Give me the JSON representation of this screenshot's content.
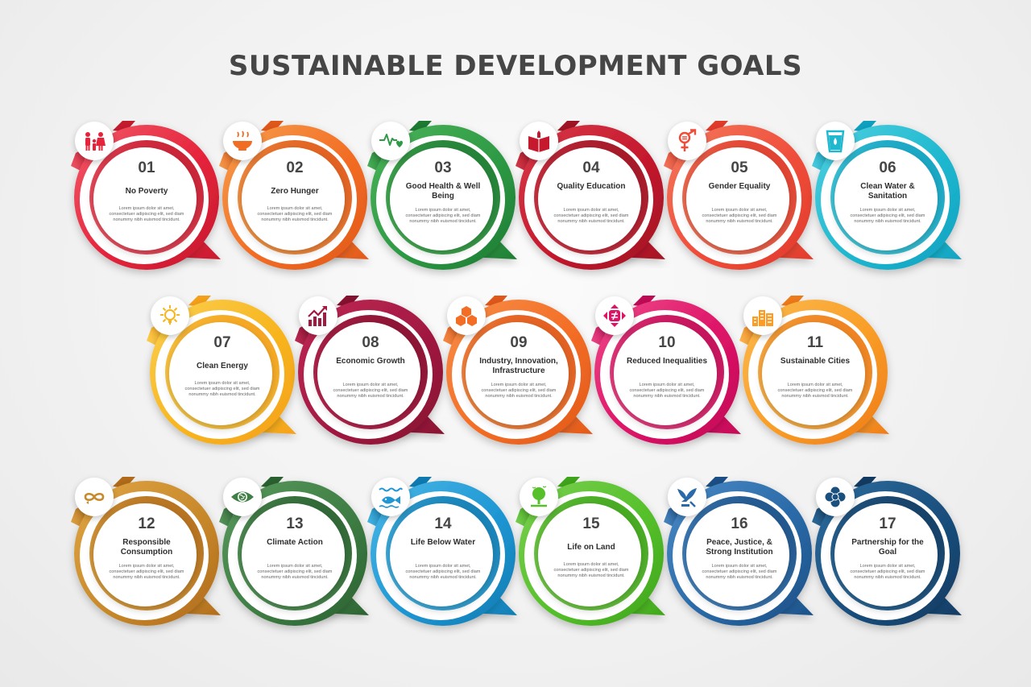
{
  "title": "SUSTAINABLE DEVELOPMENT GOALS",
  "description_text": "Lorem ipsum dolor sit amet, consectetuer adipiscing elit, sed diam nonummy nibh euismod tincidunt.",
  "goals": [
    {
      "number": "01",
      "name": "No Poverty",
      "color": "#e5243b",
      "dark": "#c41a2e",
      "light": "#f25a6a",
      "icon": "family-icon"
    },
    {
      "number": "02",
      "name": "Zero Hunger",
      "color": "#f26d24",
      "dark": "#e0571a",
      "light": "#f7a04e",
      "icon": "bowl-icon"
    },
    {
      "number": "03",
      "name": "Good Health & Well Being",
      "color": "#2e9a45",
      "dark": "#1d7a32",
      "light": "#4cb45a",
      "icon": "heartbeat-icon"
    },
    {
      "number": "04",
      "name": "Quality Education",
      "color": "#c5192d",
      "dark": "#9e1424",
      "light": "#d83a4a",
      "icon": "book-icon"
    },
    {
      "number": "05",
      "name": "Gender Equality",
      "color": "#ef4d3a",
      "dark": "#e03a2a",
      "light": "#f37a5e",
      "icon": "gender-icon"
    },
    {
      "number": "06",
      "name": "Clean Water & Sanitation",
      "color": "#1fb8cf",
      "dark": "#0fa0c0",
      "light": "#4fd0e0",
      "icon": "water-glass-icon"
    },
    {
      "number": "07",
      "name": "Clean Energy",
      "color": "#f7b51f",
      "dark": "#f5a01a",
      "light": "#fbd050",
      "icon": "sun-icon"
    },
    {
      "number": "08",
      "name": "Economic Growth",
      "color": "#a21942",
      "dark": "#85112f",
      "light": "#c02a55",
      "icon": "growth-chart-icon"
    },
    {
      "number": "09",
      "name": "Industry, Innovation, Infrastructure",
      "color": "#f36d25",
      "dark": "#e0581a",
      "light": "#f78e48",
      "icon": "cubes-icon"
    },
    {
      "number": "10",
      "name": "Reduced Inequalities",
      "color": "#dd1367",
      "dark": "#c00a55",
      "light": "#ef4a8a",
      "icon": "not-equal-icon"
    },
    {
      "number": "11",
      "name": "Sustainable Cities",
      "color": "#f99d26",
      "dark": "#ee7a1a",
      "light": "#fbbb50",
      "icon": "buildings-icon"
    },
    {
      "number": "12",
      "name": "Responsible Consumption",
      "color": "#c8892b",
      "dark": "#b06a1a",
      "light": "#e0a645",
      "icon": "infinity-icon"
    },
    {
      "number": "13",
      "name": "Climate Action",
      "color": "#3f7e44",
      "dark": "#2a6030",
      "light": "#5a9a5e",
      "icon": "eye-globe-icon"
    },
    {
      "number": "14",
      "name": "Life Below Water",
      "color": "#1f97d4",
      "dark": "#0f7ab0",
      "light": "#4ab8e6",
      "icon": "fish-icon"
    },
    {
      "number": "15",
      "name": "Life on Land",
      "color": "#56c02b",
      "dark": "#3ea41a",
      "light": "#7ad050",
      "icon": "tree-icon"
    },
    {
      "number": "16",
      "name": "Peace, Justice, & Strong Institution",
      "color": "#2a6aa8",
      "dark": "#1b4f85",
      "light": "#4a8ac5",
      "icon": "dove-icon"
    },
    {
      "number": "17",
      "name": "Partnership for the Goal",
      "color": "#1a4f7e",
      "dark": "#123a60",
      "light": "#2f6e9e",
      "icon": "flower-rings-icon"
    }
  ]
}
